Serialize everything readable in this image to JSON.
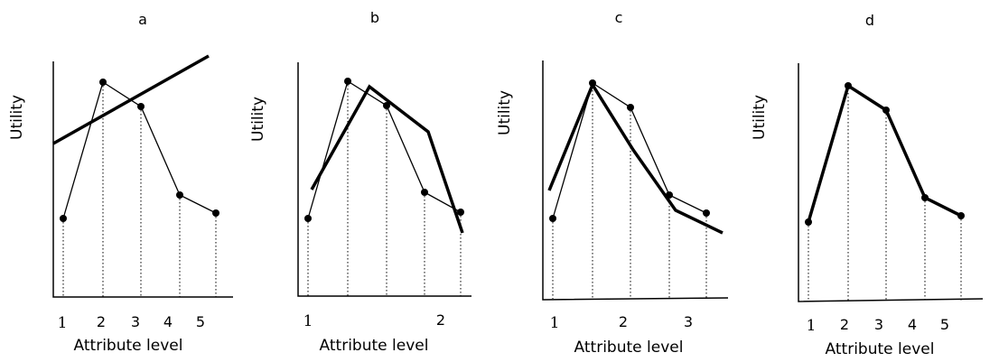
{
  "panels": [
    {
      "letter": "a",
      "ylabel": "Utility",
      "xlabel": "Attribute level",
      "ticks": [
        "1",
        "2",
        "3",
        "4",
        "5"
      ]
    },
    {
      "letter": "b",
      "ylabel": "Utility",
      "xlabel": "Attribute level",
      "ticks": [
        "1",
        "2"
      ]
    },
    {
      "letter": "c",
      "ylabel": "Utility",
      "xlabel": "Attribute level",
      "ticks": [
        "1",
        "2",
        "3"
      ]
    },
    {
      "letter": "d",
      "ylabel": "Utility",
      "xlabel": "Attribute level",
      "ticks": [
        "1",
        "2",
        "3",
        "4",
        "5"
      ]
    }
  ]
}
